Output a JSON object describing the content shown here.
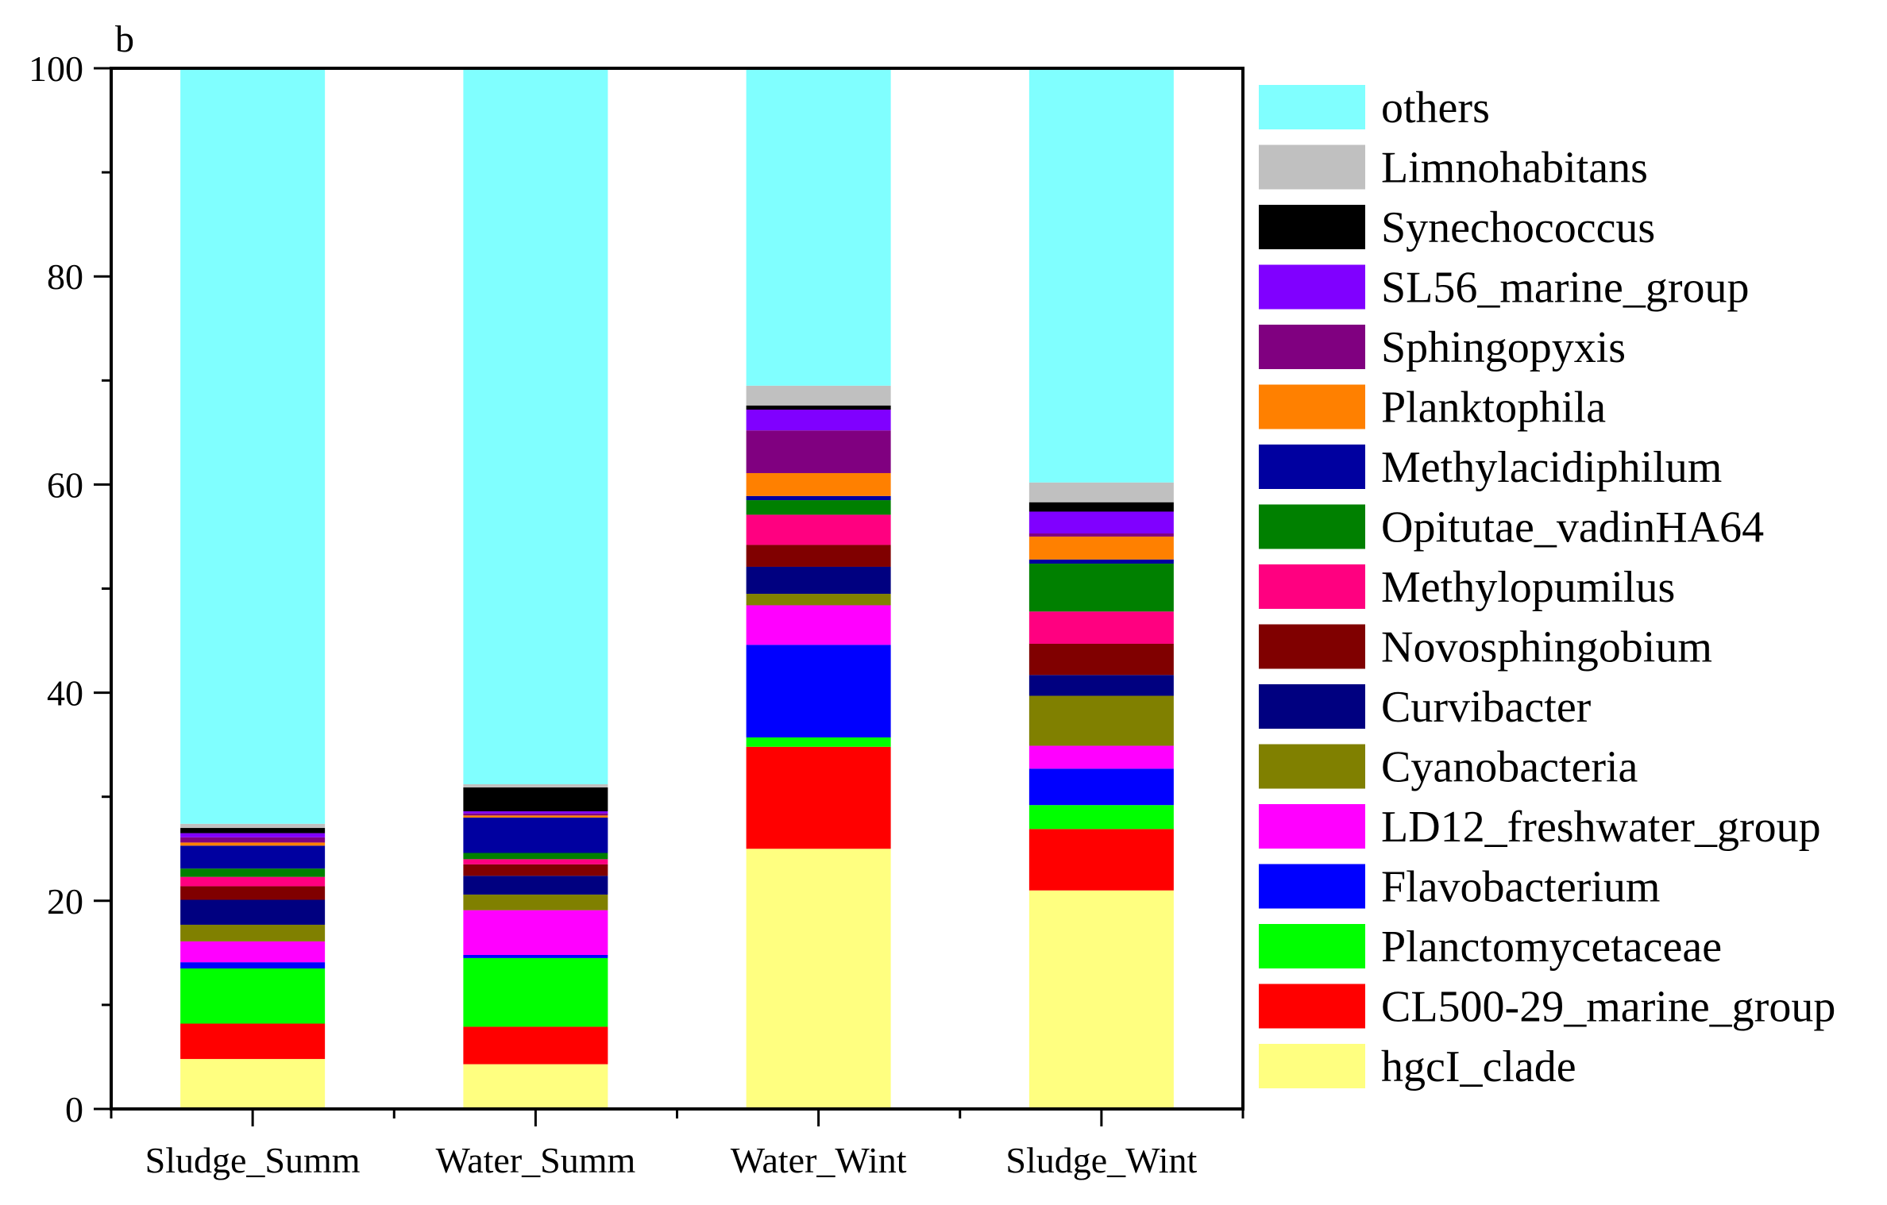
{
  "chart_data": {
    "type": "bar",
    "stacked": true,
    "panel_label": "b",
    "title": "",
    "xlabel": "",
    "ylabel": "",
    "ylim": [
      0,
      100
    ],
    "yticks": [
      0,
      20,
      40,
      60,
      80,
      100
    ],
    "categories": [
      "Sludge_Summ",
      "Water_Summ",
      "Water_Wint",
      "Sludge_Wint"
    ],
    "legend_position": "right",
    "series": [
      {
        "name": "hgcI_clade",
        "color": "#FFFF80",
        "values": [
          4.8,
          4.3,
          25.0,
          21.0
        ]
      },
      {
        "name": "CL500-29_marine_group",
        "color": "#FF0000",
        "values": [
          3.4,
          3.6,
          9.8,
          5.9
        ]
      },
      {
        "name": "Planctomycetaceae",
        "color": "#00FF00",
        "values": [
          5.3,
          6.6,
          0.9,
          2.3
        ]
      },
      {
        "name": "Flavobacterium",
        "color": "#0000FF",
        "values": [
          0.6,
          0.3,
          8.9,
          3.5
        ]
      },
      {
        "name": "LD12_freshwater_group",
        "color": "#FF00FF",
        "values": [
          2.0,
          4.3,
          3.8,
          2.2
        ]
      },
      {
        "name": "Cyanobacteria",
        "color": "#808000",
        "values": [
          1.6,
          1.5,
          1.1,
          4.8
        ]
      },
      {
        "name": "Curvibacter",
        "color": "#000080",
        "values": [
          2.4,
          1.8,
          2.6,
          2.0
        ]
      },
      {
        "name": "Novosphingobium",
        "color": "#800000",
        "values": [
          1.3,
          1.1,
          2.1,
          3.0
        ]
      },
      {
        "name": "Methylopumilus",
        "color": "#FF0080",
        "values": [
          0.9,
          0.5,
          2.9,
          3.1
        ]
      },
      {
        "name": "Opitutae_vadinHA64",
        "color": "#008000",
        "values": [
          0.8,
          0.6,
          1.4,
          4.6
        ]
      },
      {
        "name": "Methylacidiphilum",
        "color": "#0000A0",
        "values": [
          2.2,
          3.4,
          0.4,
          0.4
        ]
      },
      {
        "name": "Planktophila",
        "color": "#FF8000",
        "values": [
          0.3,
          0.2,
          2.2,
          2.2
        ]
      },
      {
        "name": "Sphingopyxis",
        "color": "#800080",
        "values": [
          0.5,
          0.2,
          4.1,
          0.3
        ]
      },
      {
        "name": "SL56_marine_group",
        "color": "#8000FF",
        "values": [
          0.4,
          0.2,
          2.0,
          2.1
        ]
      },
      {
        "name": "Synechococcus",
        "color": "#000000",
        "values": [
          0.5,
          2.3,
          0.4,
          0.9
        ]
      },
      {
        "name": "Limnohabitans",
        "color": "#C0C0C0",
        "values": [
          0.4,
          0.3,
          1.9,
          1.9
        ]
      },
      {
        "name": "others",
        "color": "#80FFFF",
        "values": [
          72.6,
          68.8,
          30.5,
          39.8
        ]
      }
    ]
  }
}
